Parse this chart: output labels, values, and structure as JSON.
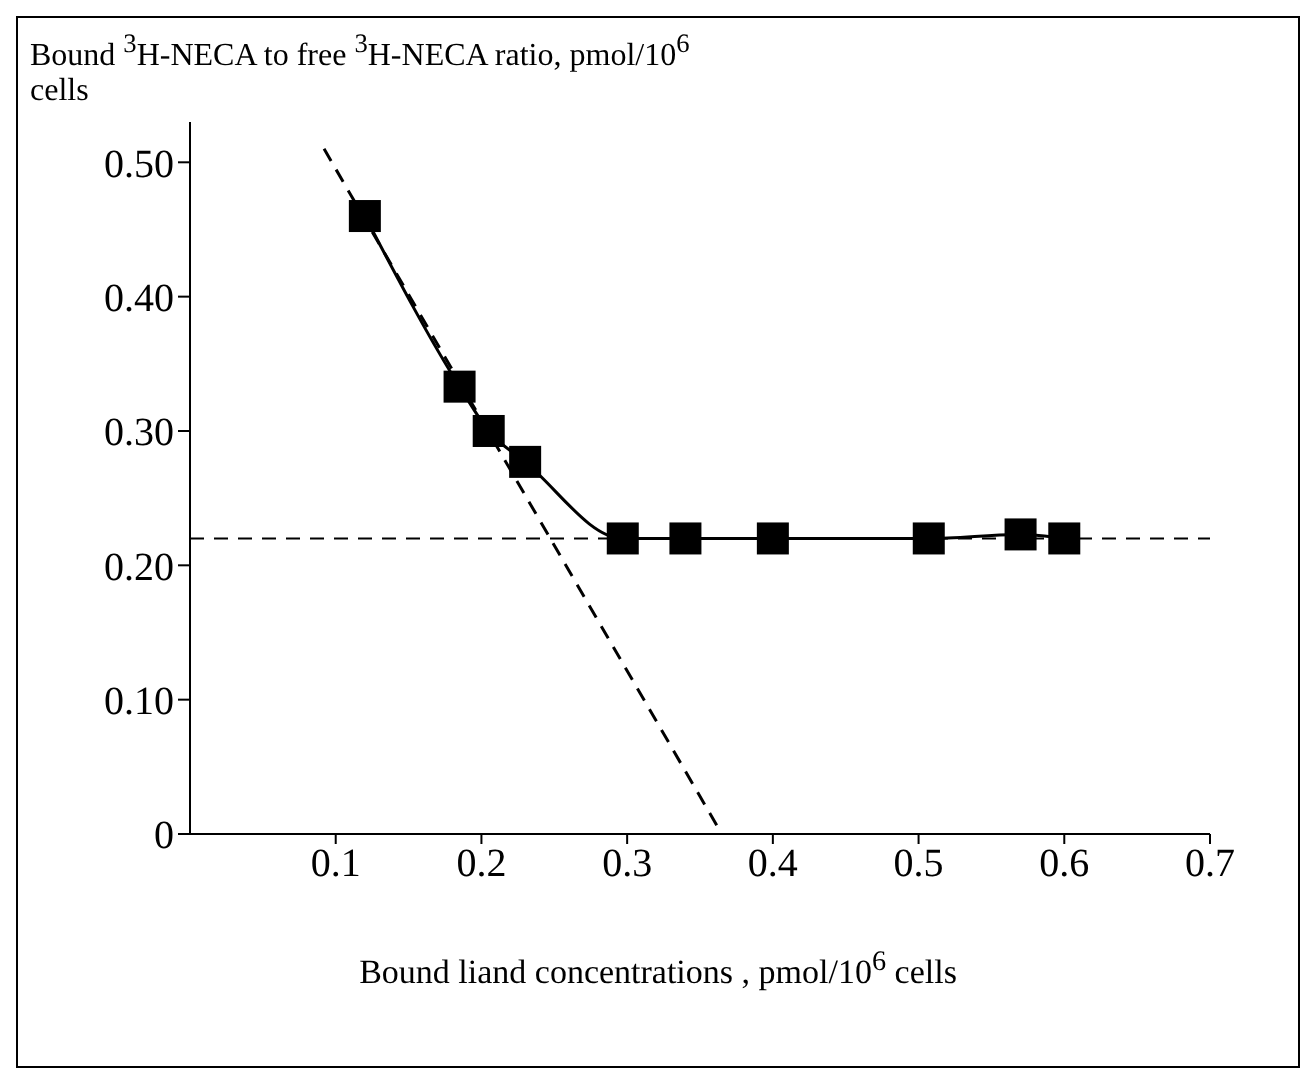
{
  "chart_data": {
    "type": "line",
    "ylabel": "Bound $^{3}$H-NECA to free $^{3}$H-NECA ratio, pmol/10$^{6}$ cells",
    "xlabel": "Bound liand concentrations , pmol/10$^{6}$ cells",
    "x": [
      0.12,
      0.185,
      0.205,
      0.23,
      0.297,
      0.34,
      0.4,
      0.507,
      0.57,
      0.6
    ],
    "xlim": [
      0,
      0.7
    ],
    "xticks": [
      0.1,
      0.2,
      0.3,
      0.4,
      0.5,
      0.6,
      0.7
    ],
    "ylim": [
      0,
      0.53
    ],
    "yticks": [
      0,
      {
        "value": 0.1,
        "label": "0.10"
      },
      {
        "value": 0.2,
        "label": "0.20"
      },
      {
        "value": 0.3,
        "label": "0.30"
      },
      {
        "value": 0.4,
        "label": "0.40"
      },
      {
        "value": 0.5,
        "label": "0.50"
      }
    ],
    "series": [
      {
        "color": "#000000",
        "marker": "square",
        "line_style": "solid",
        "values": [
          0.46,
          0.333,
          0.3,
          0.277,
          0.22,
          0.22,
          0.22,
          0.22,
          0.223,
          0.22
        ]
      },
      {
        "type": "line",
        "color": "#000000",
        "marker": "none",
        "line_style": "dashed",
        "x": [
          0.092,
          0.365
        ],
        "values": [
          0.51,
          0
        ]
      }
    ],
    "ref_lines": [
      {
        "axis": "y",
        "value": 0.22,
        "line_style": "dashed",
        "color": "#000000"
      }
    ]
  }
}
